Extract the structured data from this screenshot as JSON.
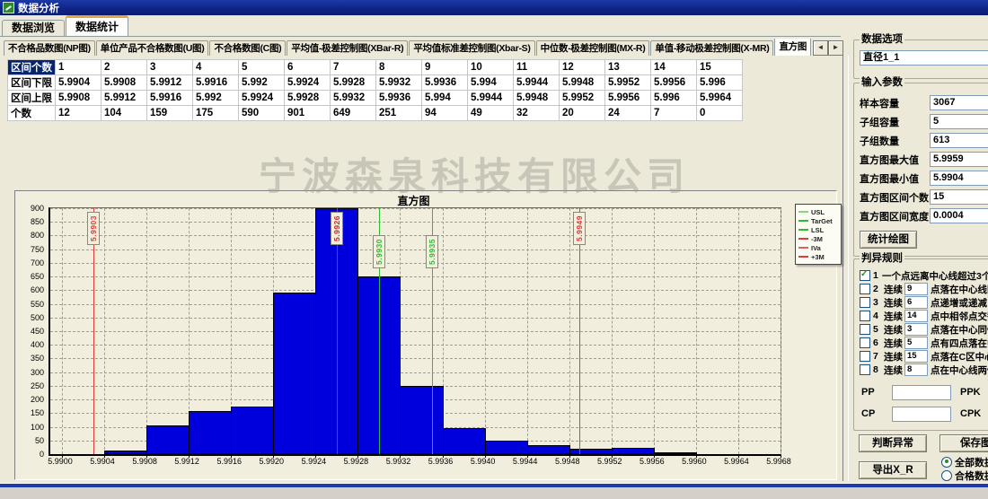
{
  "window": {
    "title": "数据分析"
  },
  "tabs": {
    "main": [
      {
        "label": "数据浏览",
        "active": false
      },
      {
        "label": "数据统计",
        "active": true
      }
    ],
    "sub": [
      "不合格品数图(NP图)",
      "单位产品不合格数图(U图)",
      "不合格数图(C图)",
      "平均值-极差控制图(XBar-R)",
      "平均值标准差控制图(Xbar-S)",
      "中位数-极差控制图(MX-R)",
      "单值-移动极差控制图(X-MR)",
      "直方图"
    ],
    "scroll_left_icon": "◄",
    "scroll_right_icon": "►"
  },
  "table": {
    "row_headers": [
      "区间个数",
      "区间下限",
      "区间上限",
      "个数"
    ],
    "bins": [
      "1",
      "2",
      "3",
      "4",
      "5",
      "6",
      "7",
      "8",
      "9",
      "10",
      "11",
      "12",
      "13",
      "14",
      "15"
    ],
    "lower": [
      "5.9904",
      "5.9908",
      "5.9912",
      "5.9916",
      "5.992",
      "5.9924",
      "5.9928",
      "5.9932",
      "5.9936",
      "5.994",
      "5.9944",
      "5.9948",
      "5.9952",
      "5.9956",
      "5.996"
    ],
    "upper": [
      "5.9908",
      "5.9912",
      "5.9916",
      "5.992",
      "5.9924",
      "5.9928",
      "5.9932",
      "5.9936",
      "5.994",
      "5.9944",
      "5.9948",
      "5.9952",
      "5.9956",
      "5.996",
      "5.9964"
    ],
    "counts": [
      "12",
      "104",
      "159",
      "175",
      "590",
      "901",
      "649",
      "251",
      "94",
      "49",
      "32",
      "20",
      "24",
      "7",
      "0"
    ]
  },
  "watermark": "宁波森泉科技有限公司",
  "chart_data": {
    "type": "bar",
    "title": "直方图",
    "bin_start": 5.9904,
    "bin_width": 0.0004,
    "counts": [
      12,
      104,
      159,
      175,
      590,
      901,
      649,
      251,
      94,
      49,
      32,
      20,
      24,
      7,
      0
    ],
    "bar_color": "#0000dd",
    "xlim": [
      5.99,
      5.9968
    ],
    "ylim": [
      0,
      900
    ],
    "x_ticks": [
      "5.9900",
      "5.9904",
      "5.9908",
      "5.9912",
      "5.9916",
      "5.9920",
      "5.9924",
      "5.9928",
      "5.9932",
      "5.9936",
      "5.9940",
      "5.9944",
      "5.9948",
      "5.9952",
      "5.9956",
      "5.9960",
      "5.9964",
      "5.9968"
    ],
    "y_ticks": [
      0,
      50,
      100,
      150,
      200,
      250,
      300,
      350,
      400,
      450,
      500,
      550,
      600,
      650,
      700,
      750,
      800,
      850,
      900
    ],
    "grid": true,
    "markers": [
      {
        "value": 5.9903,
        "label": "5.9903",
        "color": "#e03c3c",
        "label_top": 4
      },
      {
        "value": 5.9926,
        "label": "5.9926",
        "color": "#c82a2a",
        "label_top": 4
      },
      {
        "value": 5.993,
        "label": "5.9930",
        "color": "#2ebd2e",
        "label_top": 30
      },
      {
        "value": 5.9935,
        "label": "5.9935",
        "color": "#2ebd2e",
        "label_top": 30
      },
      {
        "value": 5.9949,
        "label": "5.9949",
        "color": "#e03c3c",
        "label_top": 4
      }
    ],
    "legend_position": "right-outside",
    "legend": [
      {
        "label": "USL",
        "color": "#7ade7a"
      },
      {
        "label": "TarGet",
        "color": "#2ebd2e"
      },
      {
        "label": "LSL",
        "color": "#2ebd2e"
      },
      {
        "label": "-3M",
        "color": "#e03c3c"
      },
      {
        "label": "IVa",
        "color": "#e06060"
      },
      {
        "label": "+3M",
        "color": "#e03c3c"
      }
    ]
  },
  "panel": {
    "data_options": {
      "group_label": "数据选项",
      "selected": "直径1_1"
    },
    "params": {
      "group_label": "输入参数",
      "rows": [
        {
          "label": "样本容量",
          "value": "3067"
        },
        {
          "label": "子组容量",
          "value": "5"
        },
        {
          "label": "子组数量",
          "value": "613"
        },
        {
          "label": "直方图最大值",
          "value": "5.9959"
        },
        {
          "label": "直方图最小值",
          "value": "5.9904"
        },
        {
          "label": "直方图区间个数",
          "value": "15"
        },
        {
          "label": "直方图区间宽度",
          "value": "0.0004"
        }
      ],
      "plot_button": "统计绘图"
    },
    "rules": {
      "group_label": "判异规则",
      "items": [
        {
          "num": "1",
          "checked": true,
          "pre": "",
          "input": "",
          "text": "一个点远离中心线超过3个标准差"
        },
        {
          "num": "2",
          "checked": false,
          "pre": "连续",
          "input": "9",
          "text": "点落在中心线同一侧"
        },
        {
          "num": "3",
          "checked": false,
          "pre": "连续",
          "input": "6",
          "text": "点递增或递减"
        },
        {
          "num": "4",
          "checked": false,
          "pre": "连续",
          "input": "14",
          "text": "点中相邻点交替上下"
        },
        {
          "num": "5",
          "checked": false,
          "pre": "连续",
          "input": "3",
          "text": "点落在中心同侧B区以"
        },
        {
          "num": "6",
          "checked": false,
          "pre": "连续",
          "input": "5",
          "text": "点有四点落在中心同侧"
        },
        {
          "num": "7",
          "checked": false,
          "pre": "连续",
          "input": "15",
          "text": "点落在C区中心线上下"
        },
        {
          "num": "8",
          "checked": false,
          "pre": "连续",
          "input": "8",
          "text": "点在中心线两侧但无一"
        }
      ]
    },
    "capability": {
      "pp_label": "PP",
      "pp_value": "",
      "ppk_label": "PPK",
      "ppk_value": "",
      "cp_label": "CP",
      "cp_value": "",
      "cpk_label": "CPK",
      "cpk_value": ""
    },
    "actions": {
      "judge": "判断异常",
      "save": "保存图片",
      "export": "导出X_R",
      "radio_all": "全部数据",
      "radio_ok": "合格数据",
      "radio_selected": "全部数据"
    }
  },
  "colors": {
    "title_bar": "#102488",
    "active_tab_accent": "#e8a33d",
    "selected_cell_bg": "#08246b",
    "bar": "#0000dd",
    "marker_red": "#e03c3c",
    "marker_green": "#2ebd2e"
  }
}
